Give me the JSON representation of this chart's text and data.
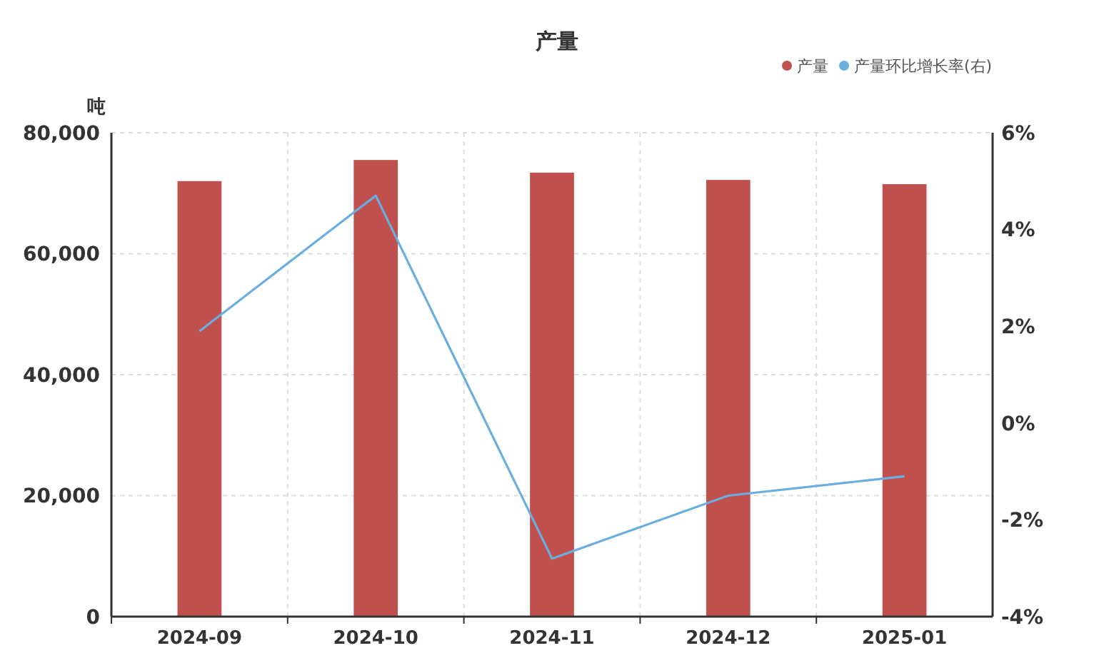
{
  "chart_data": {
    "type": "bar",
    "title": "产量",
    "ylabel": "吨",
    "categories": [
      "2024-09",
      "2024-10",
      "2024-11",
      "2024-12",
      "2025-01"
    ],
    "series": [
      {
        "name": "产量",
        "color": "#c0504d",
        "values": [
          72000,
          75500,
          73400,
          72200,
          71500
        ]
      },
      {
        "name": "产量环比增长率(右)",
        "type": "line",
        "axis": "y2",
        "color": "#6aaee0",
        "values": [
          1.9,
          4.7,
          -2.8,
          -1.5,
          -1.1
        ]
      }
    ],
    "ylim": [
      0,
      80000
    ],
    "yticks": [
      {
        "value": 0,
        "label": "0"
      },
      {
        "value": 20000,
        "label": "20,000"
      },
      {
        "value": 40000,
        "label": "40,000"
      },
      {
        "value": 60000,
        "label": "60,000"
      },
      {
        "value": 80000,
        "label": "80,000"
      }
    ],
    "y2lim": [
      -4,
      6
    ],
    "y2ticks": [
      {
        "value": -4,
        "label": "-4%"
      },
      {
        "value": -2,
        "label": "-2%"
      },
      {
        "value": 0,
        "label": "0%"
      },
      {
        "value": 2,
        "label": "2%"
      },
      {
        "value": 4,
        "label": "4%"
      },
      {
        "value": 6,
        "label": "6%"
      }
    ],
    "grid": true,
    "legend": "top right",
    "marker": "none",
    "line_style": "solid"
  }
}
